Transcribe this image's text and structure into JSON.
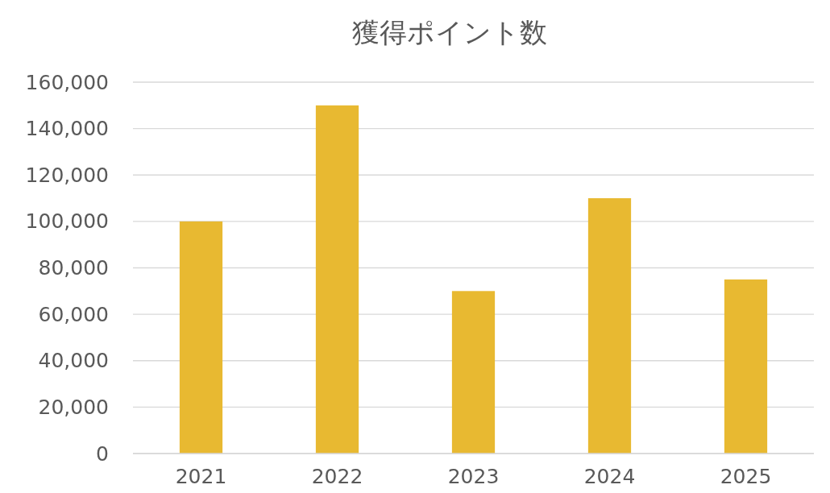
{
  "chart_data": {
    "type": "bar",
    "title": "獲得ポイント数",
    "categories": [
      "2021",
      "2022",
      "2023",
      "2024",
      "2025"
    ],
    "values": [
      100000,
      150000,
      70000,
      110000,
      75000
    ],
    "color": "#e8b931",
    "ylim": [
      0,
      160000
    ],
    "yticks": [
      {
        "value": 0,
        "label": "0"
      },
      {
        "value": 20000,
        "label": "20,000"
      },
      {
        "value": 40000,
        "label": "40,000"
      },
      {
        "value": 60000,
        "label": "60,000"
      },
      {
        "value": 80000,
        "label": "80,000"
      },
      {
        "value": 100000,
        "label": "100,000"
      },
      {
        "value": 120000,
        "label": "120,000"
      },
      {
        "value": 140000,
        "label": "140,000"
      },
      {
        "value": 160000,
        "label": "160,000"
      }
    ],
    "grid": "y"
  }
}
